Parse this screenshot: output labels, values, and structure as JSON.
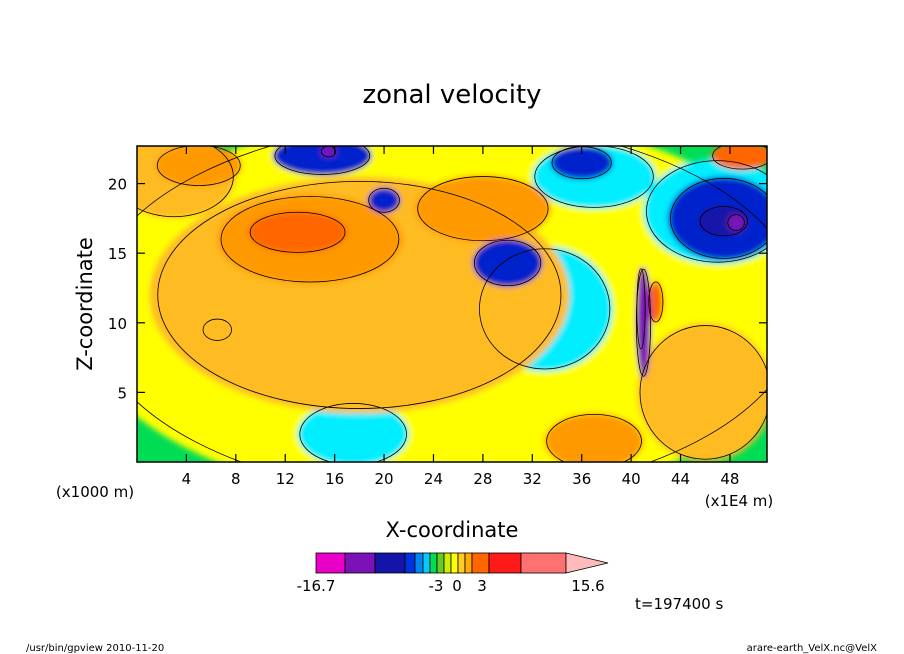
{
  "chart_data": {
    "type": "heatmap",
    "title": "zonal velocity",
    "xlabel": "X-coordinate",
    "ylabel": "Z-coordinate",
    "x_unit_label": "(x1E4 m)",
    "y_unit_label": "(x1000 m)",
    "xlim": [
      0,
      51
    ],
    "ylim": [
      0,
      22.7
    ],
    "x_ticks": [
      4,
      8,
      12,
      16,
      20,
      24,
      28,
      32,
      36,
      40,
      44,
      48
    ],
    "x_tick_labels": [
      "4",
      "8",
      "12",
      "16",
      "20",
      "24",
      "28",
      "32",
      "36",
      "40",
      "44",
      "48"
    ],
    "y_ticks": [
      5,
      10,
      15,
      20
    ],
    "y_tick_labels": [
      "5",
      "10",
      "15",
      "20"
    ],
    "colorbar": {
      "labels": [
        "-16.7",
        "-3",
        "0",
        "3",
        "15.6"
      ],
      "label_values": [
        -16.7,
        -3,
        0,
        3,
        15.6
      ],
      "colors": [
        "#e800c8",
        "#7a12b8",
        "#1414a8",
        "#0033dd",
        "#0088ee",
        "#00ccff",
        "#00dd55",
        "#66cc22",
        "#ccee00",
        "#ffff00",
        "#ffcc22",
        "#ffaa00",
        "#ff6600",
        "#ff1a1a",
        "#ff7070",
        "#ffbbbb"
      ]
    },
    "regions": [
      {
        "level": 0.5,
        "x": 25,
        "y": 11,
        "rx": 30,
        "ry": 14
      },
      {
        "level": 1.5,
        "x": 18,
        "y": 12,
        "rx": 17,
        "ry": 8.5
      },
      {
        "level": 1.5,
        "x": 46,
        "y": 5,
        "rx": 5.5,
        "ry": 5
      },
      {
        "level": 1.5,
        "x": 3,
        "y": 20.5,
        "rx": 5,
        "ry": 3
      },
      {
        "level": 2.5,
        "x": 14,
        "y": 16,
        "rx": 7.5,
        "ry": 3.2
      },
      {
        "level": 2.5,
        "x": 28,
        "y": 18.2,
        "rx": 5.5,
        "ry": 2.4
      },
      {
        "level": 2.5,
        "x": 5,
        "y": 21.3,
        "rx": 3.5,
        "ry": 1.5
      },
      {
        "level": 2.5,
        "x": 37,
        "y": 1.5,
        "rx": 4,
        "ry": 2
      },
      {
        "level": 3.5,
        "x": 13,
        "y": 16.5,
        "rx": 4,
        "ry": 1.5
      },
      {
        "level": 3.5,
        "x": 49,
        "y": 22,
        "rx": 2.5,
        "ry": 1
      },
      {
        "level": -1,
        "x": 33,
        "y": 11,
        "rx": 5.5,
        "ry": 4.5
      },
      {
        "level": -1,
        "x": 37,
        "y": 20.5,
        "rx": 5,
        "ry": 2.3
      },
      {
        "level": -1,
        "x": 17.5,
        "y": 2,
        "rx": 4.5,
        "ry": 2.3
      },
      {
        "level": -1,
        "x": 47,
        "y": 18,
        "rx": 6,
        "ry": 3.8
      },
      {
        "level": -1,
        "x": 6.5,
        "y": 9.5,
        "rx": 1.2,
        "ry": 0.8
      },
      {
        "level": -2.5,
        "x": 30,
        "y": 14.3,
        "rx": 2.8,
        "ry": 1.7
      },
      {
        "level": -2.5,
        "x": 47.5,
        "y": 17.5,
        "rx": 4.5,
        "ry": 3
      },
      {
        "level": -2.5,
        "x": 15,
        "y": 22,
        "rx": 4,
        "ry": 1.4
      },
      {
        "level": -2.5,
        "x": 20,
        "y": 18.8,
        "rx": 1.3,
        "ry": 0.9
      },
      {
        "level": -2.5,
        "x": 36,
        "y": 21.5,
        "rx": 2.5,
        "ry": 1.2
      },
      {
        "level": -6,
        "x": 47.5,
        "y": 17.3,
        "rx": 2,
        "ry": 1.1
      },
      {
        "level": -10,
        "x": 15.5,
        "y": 22.3,
        "rx": 0.6,
        "ry": 0.4
      },
      {
        "level": -10,
        "x": 48.5,
        "y": 17.2,
        "rx": 0.7,
        "ry": 0.6
      },
      {
        "level": -10,
        "x": 41,
        "y": 10,
        "rx": 0.6,
        "ry": 4
      },
      {
        "level": 5,
        "x": 42,
        "y": 11.5,
        "rx": 0.6,
        "ry": 1.5
      },
      {
        "level": 8,
        "x": 40.8,
        "y": 11,
        "rx": 0.35,
        "ry": 3
      }
    ],
    "time_label": "t=197400 s"
  },
  "footer": {
    "left": "/usr/bin/gpview  2010-11-20",
    "right": "arare-earth_VelX.nc@VelX"
  }
}
